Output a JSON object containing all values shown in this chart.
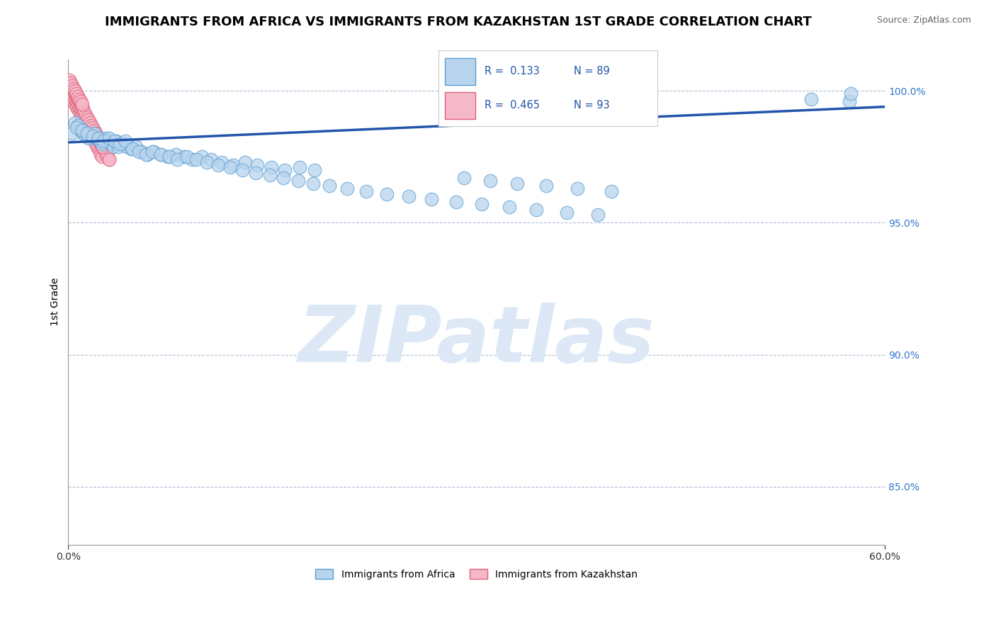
{
  "title": "IMMIGRANTS FROM AFRICA VS IMMIGRANTS FROM KAZAKHSTAN 1ST GRADE CORRELATION CHART",
  "source": "Source: ZipAtlas.com",
  "ylabel": "1st Grade",
  "x_min": 0.0,
  "x_max": 0.6,
  "y_min": 0.828,
  "y_max": 1.012,
  "yticks": [
    0.85,
    0.9,
    0.95,
    1.0
  ],
  "ytick_labels": [
    "85.0%",
    "90.0%",
    "95.0%",
    "100.0%"
  ],
  "legend_label_blue": "Immigrants from Africa",
  "legend_label_pink": "Immigrants from Kazakhstan",
  "R_blue": 0.133,
  "N_blue": 89,
  "R_pink": 0.465,
  "N_pink": 93,
  "blue_color": "#b8d4ec",
  "blue_edge": "#5a9fd4",
  "pink_color": "#f5b8c8",
  "pink_edge": "#e0607a",
  "trend_color": "#2255aa",
  "watermark_color": "#dce8f5",
  "title_fontsize": 13,
  "axis_label_fontsize": 10,
  "tick_fontsize": 10,
  "blue_scatter_x": [
    0.003,
    0.005,
    0.007,
    0.009,
    0.011,
    0.013,
    0.015,
    0.017,
    0.019,
    0.021,
    0.023,
    0.025,
    0.027,
    0.029,
    0.031,
    0.033,
    0.035,
    0.037,
    0.04,
    0.043,
    0.046,
    0.05,
    0.054,
    0.058,
    0.063,
    0.068,
    0.073,
    0.079,
    0.085,
    0.091,
    0.098,
    0.105,
    0.113,
    0.121,
    0.13,
    0.139,
    0.149,
    0.159,
    0.17,
    0.181,
    0.006,
    0.01,
    0.014,
    0.018,
    0.022,
    0.026,
    0.03,
    0.034,
    0.038,
    0.042,
    0.047,
    0.052,
    0.057,
    0.062,
    0.068,
    0.074,
    0.08,
    0.087,
    0.094,
    0.102,
    0.11,
    0.119,
    0.128,
    0.138,
    0.148,
    0.158,
    0.169,
    0.18,
    0.192,
    0.205,
    0.219,
    0.234,
    0.25,
    0.267,
    0.285,
    0.304,
    0.324,
    0.344,
    0.366,
    0.389,
    0.291,
    0.31,
    0.33,
    0.351,
    0.374,
    0.399,
    0.546,
    0.574,
    0.575
  ],
  "blue_scatter_y": [
    0.984,
    0.988,
    0.987,
    0.985,
    0.984,
    0.983,
    0.982,
    0.983,
    0.984,
    0.982,
    0.981,
    0.98,
    0.982,
    0.981,
    0.98,
    0.979,
    0.981,
    0.979,
    0.98,
    0.979,
    0.978,
    0.979,
    0.977,
    0.976,
    0.977,
    0.976,
    0.975,
    0.976,
    0.975,
    0.974,
    0.975,
    0.974,
    0.973,
    0.972,
    0.973,
    0.972,
    0.971,
    0.97,
    0.971,
    0.97,
    0.986,
    0.985,
    0.984,
    0.983,
    0.982,
    0.981,
    0.982,
    0.981,
    0.98,
    0.981,
    0.978,
    0.977,
    0.976,
    0.977,
    0.976,
    0.975,
    0.974,
    0.975,
    0.974,
    0.973,
    0.972,
    0.971,
    0.97,
    0.969,
    0.968,
    0.967,
    0.966,
    0.965,
    0.964,
    0.963,
    0.962,
    0.961,
    0.96,
    0.959,
    0.958,
    0.957,
    0.956,
    0.955,
    0.954,
    0.953,
    0.967,
    0.966,
    0.965,
    0.964,
    0.963,
    0.962,
    0.997,
    0.996,
    0.999
  ],
  "pink_scatter_x": [
    0.001,
    0.001,
    0.002,
    0.002,
    0.002,
    0.003,
    0.003,
    0.003,
    0.004,
    0.004,
    0.004,
    0.005,
    0.005,
    0.005,
    0.006,
    0.006,
    0.006,
    0.007,
    0.007,
    0.007,
    0.008,
    0.008,
    0.008,
    0.009,
    0.009,
    0.01,
    0.01,
    0.01,
    0.011,
    0.011,
    0.012,
    0.012,
    0.013,
    0.013,
    0.014,
    0.014,
    0.015,
    0.015,
    0.016,
    0.016,
    0.017,
    0.017,
    0.018,
    0.019,
    0.02,
    0.021,
    0.022,
    0.023,
    0.024,
    0.025,
    0.001,
    0.002,
    0.003,
    0.004,
    0.005,
    0.006,
    0.007,
    0.008,
    0.009,
    0.01,
    0.011,
    0.012,
    0.013,
    0.014,
    0.015,
    0.016,
    0.017,
    0.018,
    0.019,
    0.02,
    0.021,
    0.022,
    0.023,
    0.024,
    0.025,
    0.026,
    0.027,
    0.028,
    0.029,
    0.03,
    0.001,
    0.002,
    0.003,
    0.004,
    0.005,
    0.006,
    0.007,
    0.008,
    0.009,
    0.01,
    0.02,
    0.025,
    0.03
  ],
  "pink_scatter_y": [
    1.002,
    0.999,
    1.001,
    0.998,
    1.0,
    0.997,
    0.999,
    1.001,
    0.996,
    0.998,
    1.0,
    0.995,
    0.997,
    0.999,
    0.994,
    0.996,
    0.998,
    0.993,
    0.995,
    0.997,
    0.992,
    0.994,
    0.996,
    0.991,
    0.993,
    0.99,
    0.992,
    0.994,
    0.989,
    0.991,
    0.988,
    0.99,
    0.987,
    0.989,
    0.986,
    0.988,
    0.985,
    0.987,
    0.984,
    0.986,
    0.983,
    0.985,
    0.982,
    0.981,
    0.98,
    0.979,
    0.978,
    0.977,
    0.976,
    0.975,
    1.003,
    1.002,
    1.001,
    1.0,
    0.999,
    0.998,
    0.997,
    0.996,
    0.995,
    0.994,
    0.993,
    0.992,
    0.991,
    0.99,
    0.989,
    0.988,
    0.987,
    0.986,
    0.985,
    0.984,
    0.983,
    0.982,
    0.981,
    0.98,
    0.979,
    0.978,
    0.977,
    0.976,
    0.975,
    0.974,
    1.004,
    1.003,
    1.002,
    1.001,
    1.0,
    0.999,
    0.998,
    0.997,
    0.996,
    0.995,
    0.984,
    0.979,
    0.974
  ],
  "trend_x": [
    0.0,
    0.6
  ],
  "trend_y": [
    0.9805,
    0.994
  ]
}
